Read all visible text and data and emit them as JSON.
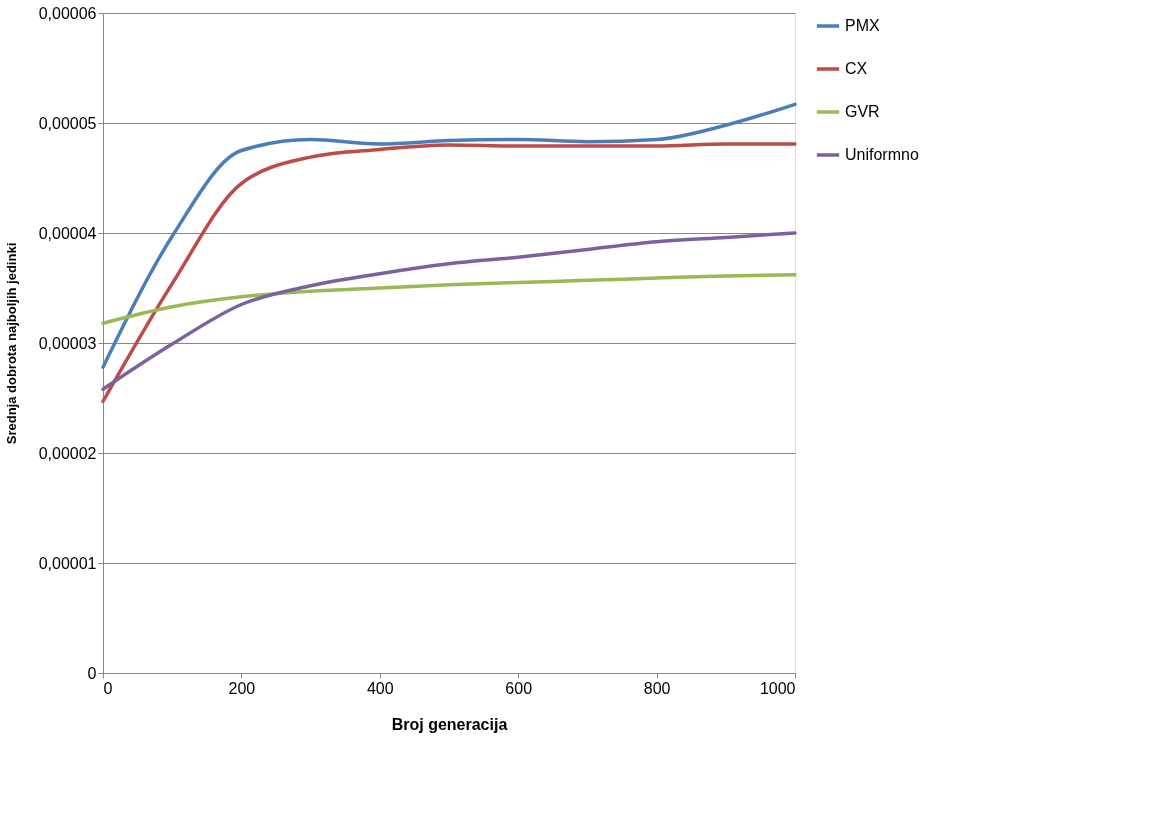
{
  "chart_data": {
    "type": "line",
    "xlabel": "Broj generacija",
    "ylabel": "Srednja dobrota najboljih jedinki",
    "x": [
      0,
      100,
      200,
      300,
      400,
      500,
      600,
      700,
      800,
      900,
      1000
    ],
    "series": [
      {
        "name": "PMX",
        "color": "#4a7ebb",
        "values": [
          2.78e-05,
          3.97e-05,
          4.75e-05,
          4.85e-05,
          4.81e-05,
          4.84e-05,
          4.85e-05,
          4.83e-05,
          4.85e-05,
          4.98e-05,
          5.17e-05
        ]
      },
      {
        "name": "CX",
        "color": "#be4b48",
        "values": [
          2.47e-05,
          3.54e-05,
          4.45e-05,
          4.69e-05,
          4.76e-05,
          4.8e-05,
          4.79e-05,
          4.79e-05,
          4.79e-05,
          4.81e-05,
          4.81e-05
        ]
      },
      {
        "name": "GVR",
        "color": "#98b954",
        "values": [
          3.18e-05,
          3.33e-05,
          3.42e-05,
          3.47e-05,
          3.5e-05,
          3.53e-05,
          3.55e-05,
          3.57e-05,
          3.59e-05,
          3.61e-05,
          3.62e-05
        ]
      },
      {
        "name": "Uniformno",
        "color": "#7d60a0",
        "values": [
          2.58e-05,
          2.99e-05,
          3.35e-05,
          3.52e-05,
          3.63e-05,
          3.72e-05,
          3.78e-05,
          3.85e-05,
          3.92e-05,
          3.96e-05,
          4e-05
        ]
      }
    ],
    "xlim": [
      0,
      1000
    ],
    "xticks": [
      0,
      200,
      400,
      600,
      800,
      1000
    ],
    "ylim": [
      0,
      6e-05
    ],
    "yticks": [
      0,
      {
        "value": 1e-05,
        "label": "0,00001"
      },
      {
        "value": 2e-05,
        "label": "0,00002"
      },
      {
        "value": 3e-05,
        "label": "0,00003"
      },
      {
        "value": 4e-05,
        "label": "0,00004"
      },
      {
        "value": 5e-05,
        "label": "0,00005"
      },
      {
        "value": 6e-05,
        "label": "0,00006"
      }
    ],
    "grid": "y",
    "legend": "right",
    "marker": "none",
    "line_style": "solid"
  }
}
